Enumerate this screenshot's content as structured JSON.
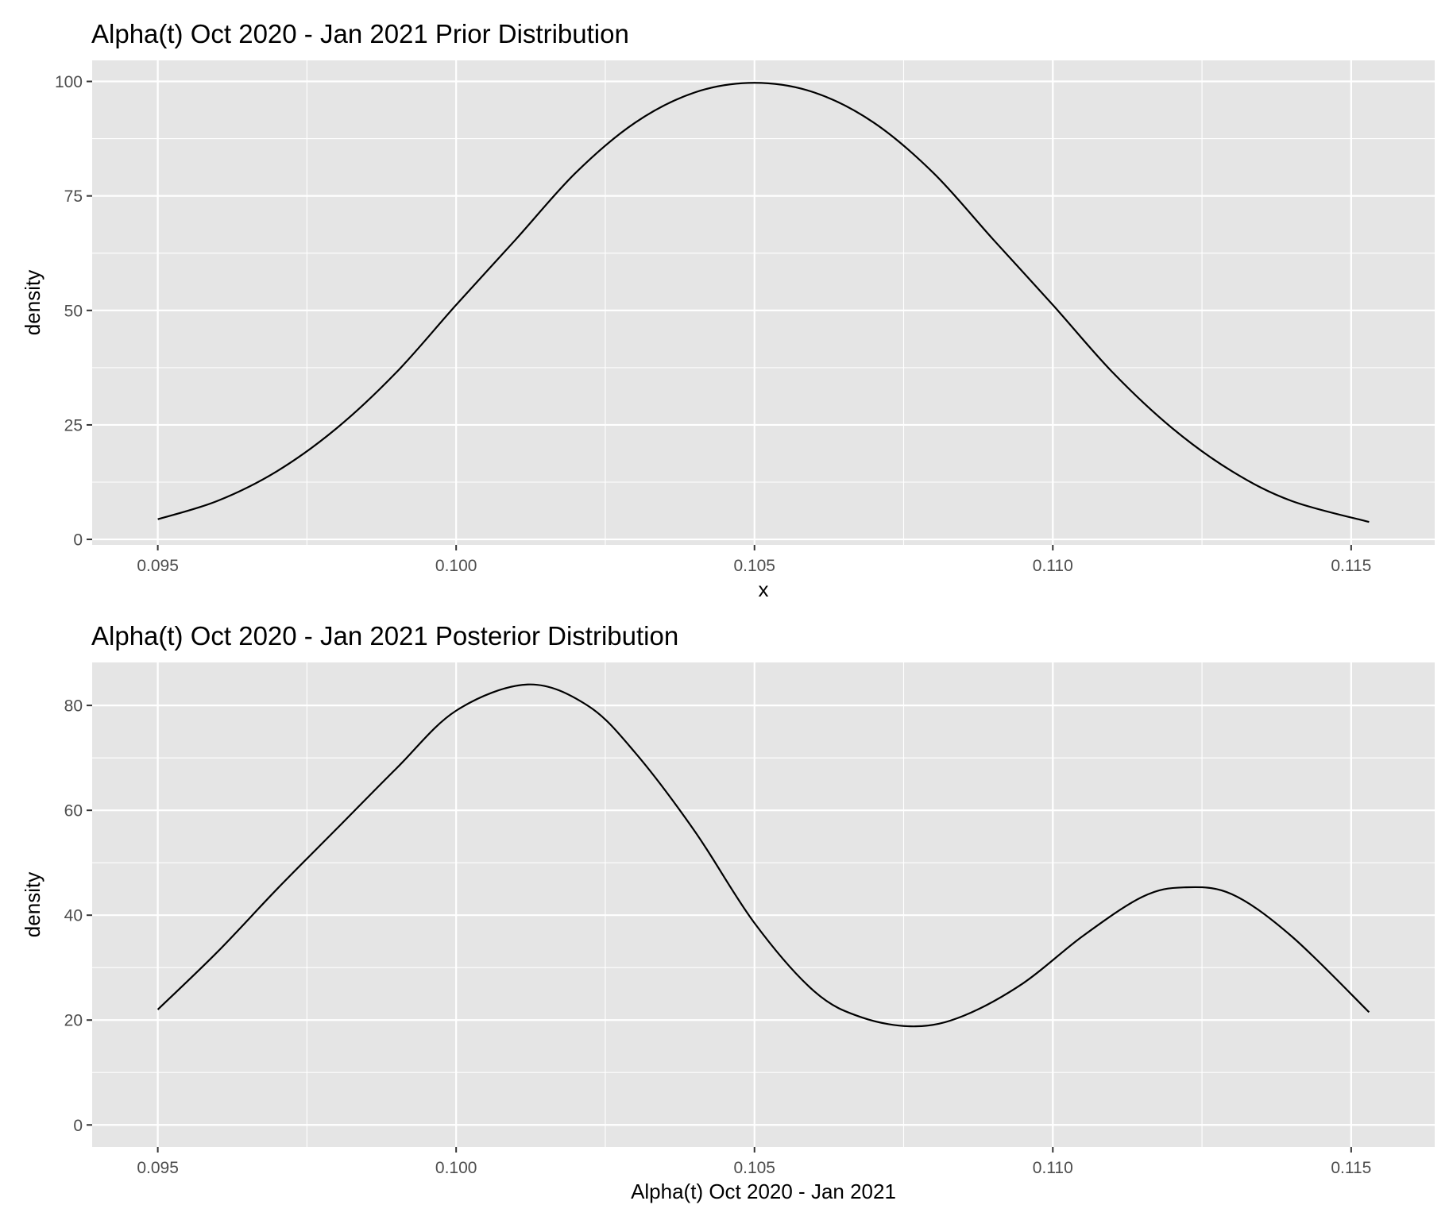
{
  "chart_data": [
    {
      "type": "line",
      "title": "Alpha(t) Oct 2020 - Jan 2021 Prior Distribution",
      "xlabel": "x",
      "ylabel": "density",
      "xlim": [
        0.0939,
        0.1164
      ],
      "ylim": [
        -1.2,
        104.6
      ],
      "x_ticks": [
        0.095,
        0.1,
        0.105,
        0.11,
        0.115
      ],
      "x_tick_labels": [
        "0.095",
        "0.100",
        "0.105",
        "0.110",
        "0.115"
      ],
      "y_ticks": [
        0,
        25,
        50,
        75,
        100
      ],
      "y_tick_labels": [
        "0",
        "25",
        "50",
        "75",
        "100"
      ],
      "grid": true,
      "legend": "none",
      "series": [
        {
          "color": "#000000",
          "x": [
            0.095,
            0.096,
            0.097,
            0.098,
            0.099,
            0.1,
            0.101,
            0.102,
            0.103,
            0.104,
            0.105,
            0.106,
            0.107,
            0.108,
            0.109,
            0.11,
            0.111,
            0.112,
            0.113,
            0.114,
            0.1153
          ],
          "y": [
            4.4,
            8.4,
            14.9,
            24.3,
            36.5,
            51.2,
            65.5,
            80.0,
            91.0,
            97.6,
            99.7,
            97.6,
            91.0,
            80.0,
            65.5,
            51.2,
            36.5,
            24.3,
            14.9,
            8.4,
            3.8
          ]
        }
      ]
    },
    {
      "type": "line",
      "title": "Alpha(t) Oct 2020 - Jan 2021 Posterior Distribution",
      "xlabel": "Alpha(t) Oct 2020 - Jan 2021",
      "ylabel": "density",
      "xlim": [
        0.0939,
        0.1164
      ],
      "ylim": [
        -4.2,
        88.2
      ],
      "x_ticks": [
        0.095,
        0.1,
        0.105,
        0.11,
        0.115
      ],
      "x_tick_labels": [
        "0.095",
        "0.100",
        "0.105",
        "0.110",
        "0.115"
      ],
      "y_ticks": [
        0,
        20,
        40,
        60,
        80
      ],
      "y_tick_labels": [
        "0",
        "20",
        "40",
        "60",
        "80"
      ],
      "grid": true,
      "legend": "none",
      "series": [
        {
          "color": "#000000",
          "x": [
            0.095,
            0.096,
            0.097,
            0.098,
            0.099,
            0.1,
            0.1012,
            0.1022,
            0.103,
            0.104,
            0.105,
            0.106,
            0.1068,
            0.1077,
            0.1085,
            0.1095,
            0.1105,
            0.1115,
            0.1122,
            0.113,
            0.114,
            0.1153
          ],
          "y": [
            22.0,
            33.0,
            45.0,
            56.5,
            68.0,
            79.0,
            84.0,
            80.0,
            71.0,
            56.0,
            38.5,
            25.5,
            20.5,
            18.8,
            20.8,
            27.0,
            36.0,
            43.5,
            45.3,
            44.0,
            36.0,
            21.5
          ]
        }
      ]
    }
  ]
}
